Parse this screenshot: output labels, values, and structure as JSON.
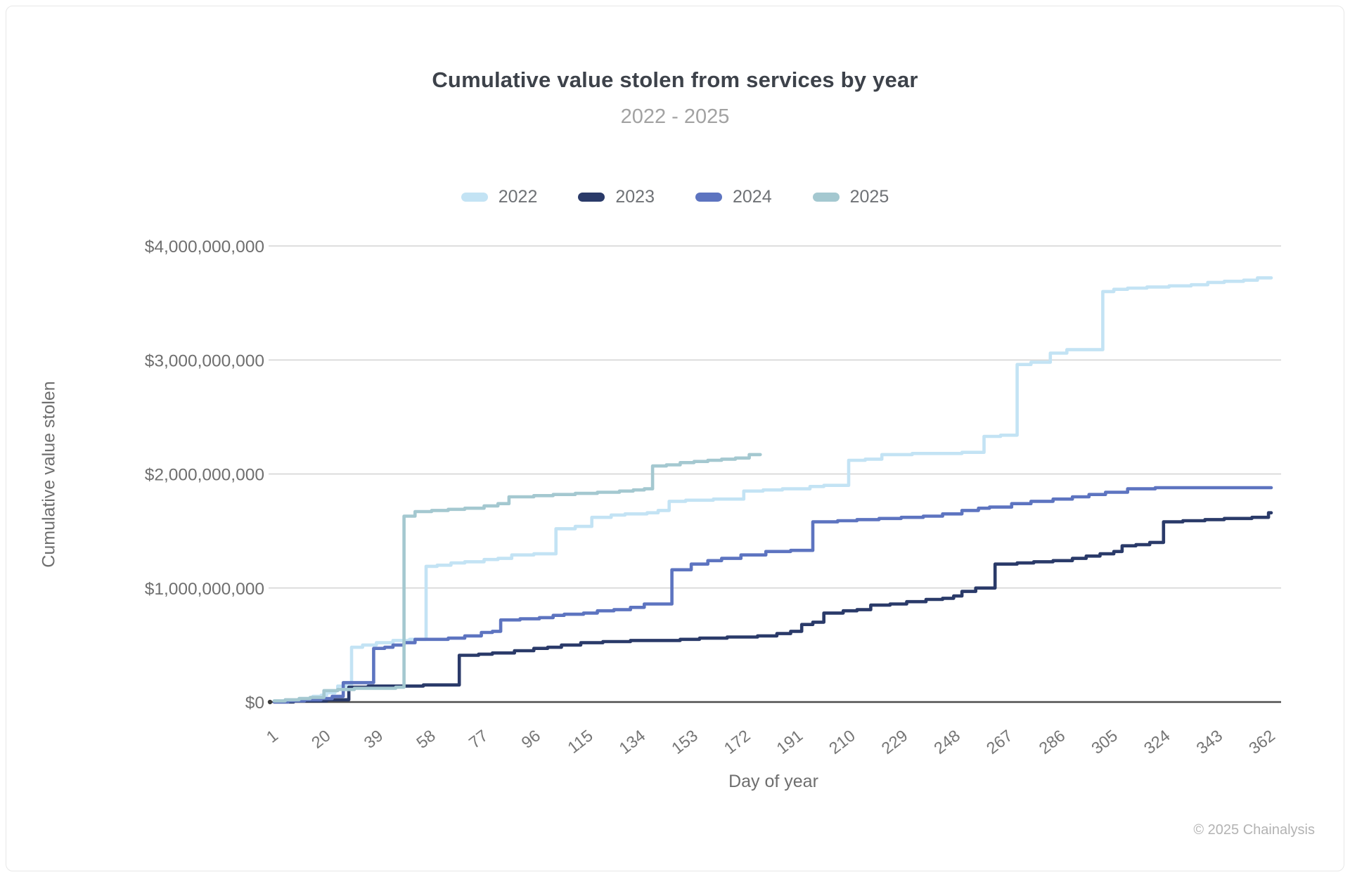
{
  "header": {
    "title": "Cumulative value stolen from services by year",
    "subtitle": "2022 - 2025"
  },
  "legend": {
    "items": [
      {
        "label": "2022",
        "color": "#c3e3f4"
      },
      {
        "label": "2023",
        "color": "#2a3a69"
      },
      {
        "label": "2024",
        "color": "#5d74c0"
      },
      {
        "label": "2025",
        "color": "#a4c8d0"
      }
    ]
  },
  "axes": {
    "x_title": "Day of year",
    "y_title": "Cumulative value stolen"
  },
  "footer": {
    "copyright": "© 2025 Chainalysis"
  },
  "chart_data": {
    "type": "line",
    "step": true,
    "title": "Cumulative value stolen from services by year",
    "subtitle": "2022 - 2025",
    "xlabel": "Day of year",
    "ylabel": "Cumulative value stolen",
    "values_unit": "USD billions",
    "xlim": [
      1,
      362
    ],
    "ylim": [
      0,
      4
    ],
    "x_ticks": [
      1,
      20,
      39,
      58,
      77,
      96,
      115,
      134,
      153,
      172,
      191,
      210,
      229,
      248,
      267,
      286,
      305,
      324,
      343,
      362
    ],
    "y_ticks": [
      {
        "value": 0,
        "label": "$0"
      },
      {
        "value": 1,
        "label": "$1,000,000,000"
      },
      {
        "value": 2,
        "label": "$2,000,000,000"
      },
      {
        "value": 3,
        "label": "$3,000,000,000"
      },
      {
        "value": 4,
        "label": "$4,000,000,000"
      }
    ],
    "grid": "horizontal",
    "legend_position": "top",
    "series": [
      {
        "name": "2022",
        "color": "#c3e3f4",
        "points": [
          [
            1,
            0.01
          ],
          [
            5,
            0.02
          ],
          [
            10,
            0.03
          ],
          [
            15,
            0.05
          ],
          [
            18,
            0.06
          ],
          [
            20,
            0.08
          ],
          [
            23,
            0.1
          ],
          [
            24,
            0.14
          ],
          [
            29,
            0.48
          ],
          [
            33,
            0.5
          ],
          [
            38,
            0.52
          ],
          [
            44,
            0.54
          ],
          [
            50,
            0.55
          ],
          [
            56,
            1.19
          ],
          [
            60,
            1.2
          ],
          [
            65,
            1.22
          ],
          [
            70,
            1.23
          ],
          [
            77,
            1.25
          ],
          [
            82,
            1.26
          ],
          [
            87,
            1.29
          ],
          [
            95,
            1.3
          ],
          [
            103,
            1.52
          ],
          [
            110,
            1.54
          ],
          [
            116,
            1.62
          ],
          [
            123,
            1.64
          ],
          [
            128,
            1.65
          ],
          [
            136,
            1.66
          ],
          [
            140,
            1.68
          ],
          [
            144,
            1.76
          ],
          [
            150,
            1.77
          ],
          [
            160,
            1.78
          ],
          [
            171,
            1.85
          ],
          [
            178,
            1.86
          ],
          [
            185,
            1.87
          ],
          [
            195,
            1.89
          ],
          [
            200,
            1.9
          ],
          [
            209,
            2.12
          ],
          [
            215,
            2.13
          ],
          [
            221,
            2.17
          ],
          [
            232,
            2.18
          ],
          [
            250,
            2.19
          ],
          [
            258,
            2.33
          ],
          [
            264,
            2.34
          ],
          [
            270,
            2.96
          ],
          [
            275,
            2.98
          ],
          [
            282,
            3.06
          ],
          [
            288,
            3.09
          ],
          [
            301,
            3.6
          ],
          [
            305,
            3.62
          ],
          [
            310,
            3.63
          ],
          [
            317,
            3.64
          ],
          [
            325,
            3.65
          ],
          [
            333,
            3.66
          ],
          [
            339,
            3.68
          ],
          [
            345,
            3.69
          ],
          [
            352,
            3.7
          ],
          [
            357,
            3.72
          ],
          [
            362,
            3.72
          ]
        ]
      },
      {
        "name": "2023",
        "color": "#2a3a69",
        "points": [
          [
            1,
            0.0
          ],
          [
            8,
            0.01
          ],
          [
            14,
            0.01
          ],
          [
            20,
            0.02
          ],
          [
            26,
            0.02
          ],
          [
            28,
            0.13
          ],
          [
            35,
            0.14
          ],
          [
            45,
            0.14
          ],
          [
            55,
            0.15
          ],
          [
            68,
            0.41
          ],
          [
            75,
            0.42
          ],
          [
            80,
            0.43
          ],
          [
            88,
            0.45
          ],
          [
            95,
            0.47
          ],
          [
            100,
            0.48
          ],
          [
            105,
            0.5
          ],
          [
            112,
            0.52
          ],
          [
            120,
            0.53
          ],
          [
            130,
            0.54
          ],
          [
            148,
            0.55
          ],
          [
            155,
            0.56
          ],
          [
            165,
            0.57
          ],
          [
            176,
            0.58
          ],
          [
            183,
            0.6
          ],
          [
            188,
            0.62
          ],
          [
            192,
            0.68
          ],
          [
            196,
            0.7
          ],
          [
            200,
            0.78
          ],
          [
            207,
            0.8
          ],
          [
            212,
            0.81
          ],
          [
            217,
            0.85
          ],
          [
            224,
            0.86
          ],
          [
            230,
            0.88
          ],
          [
            237,
            0.9
          ],
          [
            243,
            0.91
          ],
          [
            247,
            0.93
          ],
          [
            250,
            0.97
          ],
          [
            255,
            1.0
          ],
          [
            262,
            1.21
          ],
          [
            270,
            1.22
          ],
          [
            276,
            1.23
          ],
          [
            283,
            1.24
          ],
          [
            290,
            1.26
          ],
          [
            295,
            1.28
          ],
          [
            300,
            1.3
          ],
          [
            305,
            1.32
          ],
          [
            308,
            1.37
          ],
          [
            313,
            1.38
          ],
          [
            318,
            1.4
          ],
          [
            323,
            1.58
          ],
          [
            330,
            1.59
          ],
          [
            338,
            1.6
          ],
          [
            345,
            1.61
          ],
          [
            355,
            1.62
          ],
          [
            361,
            1.66
          ],
          [
            362,
            1.66
          ]
        ]
      },
      {
        "name": "2024",
        "color": "#5d74c0",
        "points": [
          [
            1,
            0.0
          ],
          [
            6,
            0.01
          ],
          [
            12,
            0.02
          ],
          [
            18,
            0.03
          ],
          [
            22,
            0.05
          ],
          [
            26,
            0.17
          ],
          [
            32,
            0.17
          ],
          [
            37,
            0.47
          ],
          [
            41,
            0.48
          ],
          [
            44,
            0.5
          ],
          [
            48,
            0.52
          ],
          [
            52,
            0.55
          ],
          [
            58,
            0.55
          ],
          [
            64,
            0.56
          ],
          [
            70,
            0.58
          ],
          [
            76,
            0.61
          ],
          [
            80,
            0.62
          ],
          [
            83,
            0.72
          ],
          [
            90,
            0.73
          ],
          [
            97,
            0.74
          ],
          [
            102,
            0.76
          ],
          [
            106,
            0.77
          ],
          [
            113,
            0.78
          ],
          [
            118,
            0.8
          ],
          [
            124,
            0.81
          ],
          [
            130,
            0.83
          ],
          [
            135,
            0.86
          ],
          [
            140,
            0.86
          ],
          [
            145,
            1.16
          ],
          [
            152,
            1.21
          ],
          [
            158,
            1.24
          ],
          [
            163,
            1.26
          ],
          [
            170,
            1.29
          ],
          [
            179,
            1.32
          ],
          [
            188,
            1.33
          ],
          [
            196,
            1.58
          ],
          [
            205,
            1.59
          ],
          [
            212,
            1.6
          ],
          [
            220,
            1.61
          ],
          [
            228,
            1.62
          ],
          [
            236,
            1.63
          ],
          [
            243,
            1.65
          ],
          [
            250,
            1.68
          ],
          [
            256,
            1.7
          ],
          [
            260,
            1.71
          ],
          [
            268,
            1.74
          ],
          [
            275,
            1.76
          ],
          [
            283,
            1.78
          ],
          [
            290,
            1.8
          ],
          [
            296,
            1.82
          ],
          [
            302,
            1.84
          ],
          [
            310,
            1.87
          ],
          [
            320,
            1.88
          ],
          [
            340,
            1.88
          ],
          [
            362,
            1.88
          ]
        ]
      },
      {
        "name": "2025",
        "color": "#a4c8d0",
        "points": [
          [
            1,
            0.01
          ],
          [
            5,
            0.02
          ],
          [
            10,
            0.03
          ],
          [
            14,
            0.04
          ],
          [
            19,
            0.1
          ],
          [
            24,
            0.11
          ],
          [
            30,
            0.12
          ],
          [
            38,
            0.12
          ],
          [
            45,
            0.13
          ],
          [
            48,
            1.63
          ],
          [
            52,
            1.67
          ],
          [
            58,
            1.68
          ],
          [
            64,
            1.69
          ],
          [
            70,
            1.7
          ],
          [
            77,
            1.72
          ],
          [
            82,
            1.74
          ],
          [
            86,
            1.8
          ],
          [
            95,
            1.81
          ],
          [
            102,
            1.82
          ],
          [
            110,
            1.83
          ],
          [
            118,
            1.84
          ],
          [
            126,
            1.85
          ],
          [
            131,
            1.86
          ],
          [
            135,
            1.87
          ],
          [
            138,
            2.07
          ],
          [
            143,
            2.08
          ],
          [
            148,
            2.1
          ],
          [
            153,
            2.11
          ],
          [
            158,
            2.12
          ],
          [
            163,
            2.13
          ],
          [
            168,
            2.14
          ],
          [
            173,
            2.17
          ],
          [
            177,
            2.17
          ]
        ]
      }
    ]
  }
}
